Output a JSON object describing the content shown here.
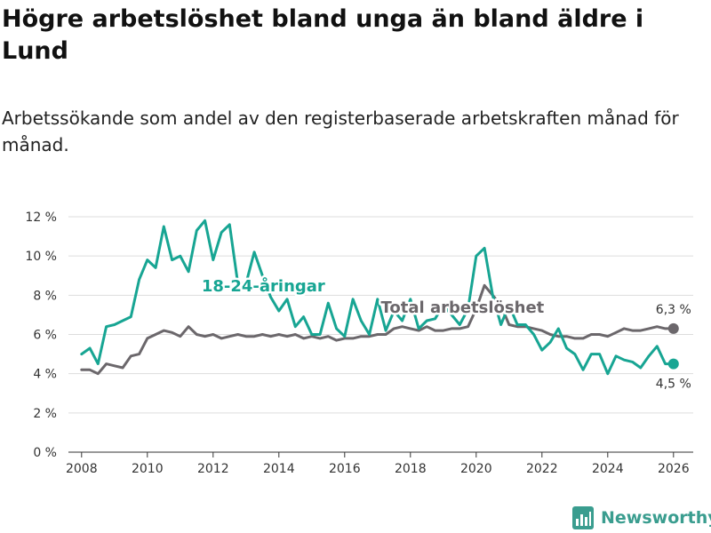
{
  "title": "Högre arbetslöshet bland unga än bland äldre i Lund",
  "subtitle": "Arbetssökande som andel av den registerbaserade arbetskraften månad för månad.",
  "brand": {
    "name": "Newsworthy",
    "icon": "newsworthy-logo-icon"
  },
  "colors": {
    "youth": "#17a593",
    "total": "#6b676b",
    "grid": "#dddddd",
    "axis": "#333333"
  },
  "chart_data": {
    "type": "line",
    "title": "Högre arbetslöshet bland unga än bland äldre i Lund",
    "xlabel": "",
    "ylabel": "",
    "xlim": [
      2007.6,
      2026.6
    ],
    "ylim": [
      0,
      12
    ],
    "grid": true,
    "x_ticks": [
      2008,
      2010,
      2012,
      2014,
      2016,
      2018,
      2020,
      2022,
      2024,
      2026
    ],
    "x_tick_labels": [
      "2008",
      "2010",
      "2012",
      "2014",
      "2016",
      "2018",
      "2020",
      "2022",
      "2024",
      "2026"
    ],
    "y_ticks": [
      0,
      2,
      4,
      6,
      8,
      10,
      12
    ],
    "y_tick_labels": [
      "0 %",
      "2 %",
      "4 %",
      "6 %",
      "8 %",
      "10 %",
      "12 %"
    ],
    "series": [
      {
        "name": "18-24-åringar",
        "color": "#17a593",
        "x": [
          2008.0,
          2008.25,
          2008.5,
          2008.75,
          2009.0,
          2009.25,
          2009.5,
          2009.75,
          2010.0,
          2010.25,
          2010.5,
          2010.75,
          2011.0,
          2011.25,
          2011.5,
          2011.75,
          2012.0,
          2012.25,
          2012.5,
          2012.75,
          2013.0,
          2013.25,
          2013.5,
          2013.75,
          2014.0,
          2014.25,
          2014.5,
          2014.75,
          2015.0,
          2015.25,
          2015.5,
          2015.75,
          2016.0,
          2016.25,
          2016.5,
          2016.75,
          2017.0,
          2017.25,
          2017.5,
          2017.75,
          2018.0,
          2018.25,
          2018.5,
          2018.75,
          2019.0,
          2019.25,
          2019.5,
          2019.75,
          2020.0,
          2020.25,
          2020.5,
          2020.75,
          2021.0,
          2021.25,
          2021.5,
          2021.75,
          2022.0,
          2022.25,
          2022.5,
          2022.75,
          2023.0,
          2023.25,
          2023.5,
          2023.75,
          2024.0,
          2024.25,
          2024.5,
          2024.75,
          2025.0,
          2025.25,
          2025.5,
          2025.75,
          2026.0
        ],
        "values": [
          5.0,
          5.3,
          4.5,
          6.4,
          6.5,
          6.7,
          6.9,
          8.8,
          9.8,
          9.4,
          11.5,
          9.8,
          10.0,
          9.2,
          11.3,
          11.8,
          9.8,
          11.2,
          11.6,
          8.6,
          8.6,
          10.2,
          9.0,
          7.9,
          7.2,
          7.8,
          6.4,
          6.9,
          6.0,
          6.0,
          7.6,
          6.3,
          5.9,
          7.8,
          6.7,
          6.0,
          7.8,
          6.2,
          7.2,
          6.7,
          7.8,
          6.3,
          6.7,
          6.8,
          7.5,
          7.0,
          6.5,
          7.3,
          10.0,
          10.4,
          8.0,
          6.5,
          7.5,
          6.5,
          6.5,
          6.0,
          5.2,
          5.6,
          6.3,
          5.3,
          5.0,
          4.2,
          5.0,
          5.0,
          4.0,
          4.9,
          4.7,
          4.6,
          4.3,
          4.9,
          5.4,
          4.5,
          4.5
        ]
      },
      {
        "name": "Total arbetslöshet",
        "color": "#6b676b",
        "x": [
          2008.0,
          2008.25,
          2008.5,
          2008.75,
          2009.0,
          2009.25,
          2009.5,
          2009.75,
          2010.0,
          2010.25,
          2010.5,
          2010.75,
          2011.0,
          2011.25,
          2011.5,
          2011.75,
          2012.0,
          2012.25,
          2012.5,
          2012.75,
          2013.0,
          2013.25,
          2013.5,
          2013.75,
          2014.0,
          2014.25,
          2014.5,
          2014.75,
          2015.0,
          2015.25,
          2015.5,
          2015.75,
          2016.0,
          2016.25,
          2016.5,
          2016.75,
          2017.0,
          2017.25,
          2017.5,
          2017.75,
          2018.0,
          2018.25,
          2018.5,
          2018.75,
          2019.0,
          2019.25,
          2019.5,
          2019.75,
          2020.0,
          2020.25,
          2020.5,
          2020.75,
          2021.0,
          2021.25,
          2021.5,
          2021.75,
          2022.0,
          2022.25,
          2022.5,
          2022.75,
          2023.0,
          2023.25,
          2023.5,
          2023.75,
          2024.0,
          2024.25,
          2024.5,
          2024.75,
          2025.0,
          2025.25,
          2025.5,
          2025.75,
          2026.0
        ],
        "values": [
          4.2,
          4.2,
          4.0,
          4.5,
          4.4,
          4.3,
          4.9,
          5.0,
          5.8,
          6.0,
          6.2,
          6.1,
          5.9,
          6.4,
          6.0,
          5.9,
          6.0,
          5.8,
          5.9,
          6.0,
          5.9,
          5.9,
          6.0,
          5.9,
          6.0,
          5.9,
          6.0,
          5.8,
          5.9,
          5.8,
          5.9,
          5.7,
          5.8,
          5.8,
          5.9,
          5.9,
          6.0,
          6.0,
          6.3,
          6.4,
          6.3,
          6.2,
          6.4,
          6.2,
          6.2,
          6.3,
          6.3,
          6.4,
          7.3,
          8.5,
          8.0,
          7.5,
          6.5,
          6.4,
          6.4,
          6.3,
          6.2,
          6.0,
          5.9,
          5.9,
          5.8,
          5.8,
          6.0,
          6.0,
          5.9,
          6.1,
          6.3,
          6.2,
          6.2,
          6.3,
          6.4,
          6.3,
          6.3
        ]
      }
    ],
    "annotations": [
      {
        "series": "18-24-åringar",
        "text": "18-24-åringar"
      },
      {
        "series": "Total arbetslöshet",
        "text": "Total arbetslöshet"
      },
      {
        "series": "Total arbetslöshet",
        "text": "6,3 %",
        "x": 2026,
        "value": 6.3
      },
      {
        "series": "18-24-åringar",
        "text": "4,5 %",
        "x": 2026,
        "value": 4.5
      }
    ]
  }
}
